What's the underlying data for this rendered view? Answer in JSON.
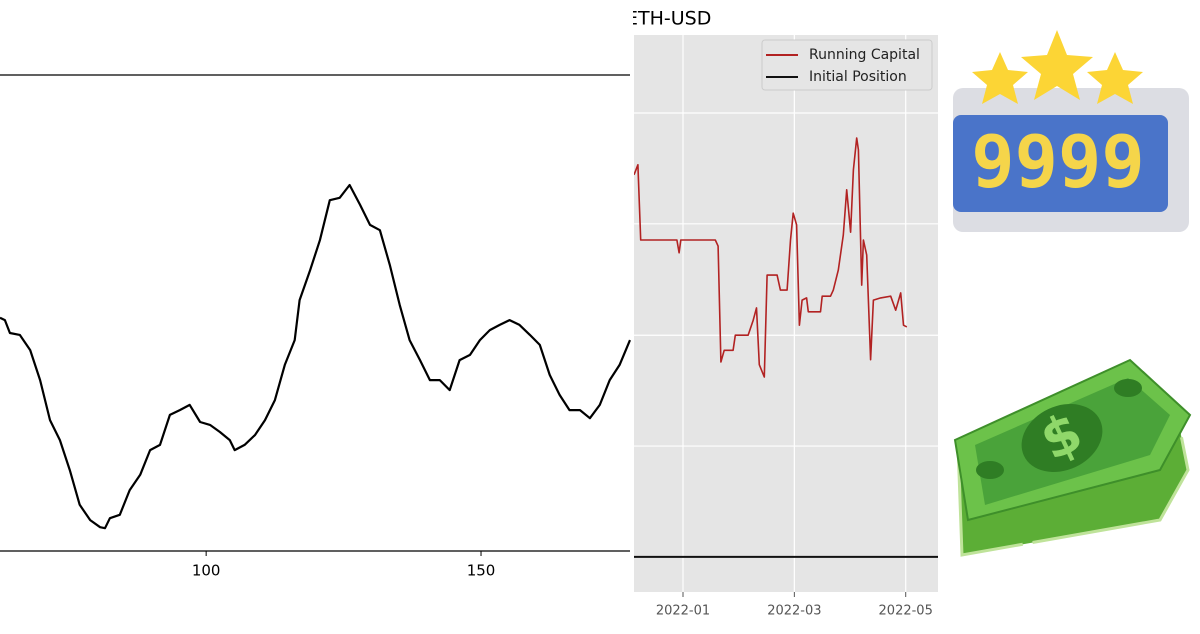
{
  "chart_data": [
    {
      "type": "line",
      "x": [
        62.5,
        63.4,
        64.3,
        66.1,
        68.0,
        69.8,
        71.6,
        73.4,
        75.2,
        77.0,
        78.9,
        80.7,
        81.6,
        82.5,
        84.3,
        86.1,
        88.0,
        89.8,
        91.6,
        93.4,
        95.2,
        97.0,
        98.9,
        100.7,
        102.5,
        104.3,
        105.2,
        107.0,
        108.9,
        110.7,
        112.5,
        114.3,
        116.1,
        117.0,
        118.9,
        120.7,
        122.5,
        124.3,
        126.1,
        128.0,
        129.8,
        131.6,
        133.4,
        135.2,
        137.0,
        138.9,
        140.7,
        142.5,
        144.3,
        146.1,
        148.0,
        149.8,
        151.6,
        153.4,
        155.2,
        157.0,
        158.9,
        160.7,
        162.5,
        164.3,
        166.1,
        168.0,
        169.8,
        171.6,
        173.4,
        175.2,
        177.1
      ],
      "series": [
        {
          "color": "#000000",
          "values": [
            49.0,
            48.5,
            45.8,
            45.4,
            42.2,
            35.9,
            27.5,
            23.3,
            17.0,
            9.7,
            6.5,
            5.0,
            4.8,
            6.9,
            7.6,
            12.8,
            16.0,
            21.2,
            22.3,
            28.6,
            29.6,
            30.7,
            27.1,
            26.5,
            25.0,
            23.3,
            21.2,
            22.3,
            24.4,
            27.5,
            31.7,
            39.1,
            44.3,
            52.7,
            59.0,
            65.3,
            73.7,
            74.2,
            76.9,
            72.7,
            68.5,
            67.4,
            60.1,
            51.7,
            44.3,
            40.1,
            35.9,
            35.9,
            33.8,
            40.1,
            41.2,
            44.3,
            46.4,
            47.5,
            48.5,
            47.5,
            45.4,
            43.3,
            37.0,
            32.8,
            29.6,
            29.6,
            27.9,
            30.7,
            35.9,
            39.1,
            44.3
          ]
        }
      ],
      "xlim": [
        62.5,
        177.1
      ],
      "xticks": [
        100,
        150
      ],
      "ylim": [
        0,
        100
      ],
      "grid": false
    },
    {
      "type": "line",
      "title": "ETH-USD",
      "x": [
        0.12,
        0.19,
        0.24,
        0.89,
        0.93,
        0.96,
        1.58,
        1.63,
        1.68,
        1.74,
        1.9,
        1.94,
        2.17,
        2.26,
        2.32,
        2.37,
        2.46,
        2.51,
        2.69,
        2.75,
        2.87,
        2.93,
        2.98,
        3.04,
        3.09,
        3.14,
        3.22,
        3.25,
        3.47,
        3.5,
        3.65,
        3.7,
        3.79,
        3.88,
        3.94,
        4.01,
        4.06,
        4.12,
        4.15,
        4.21,
        4.24,
        4.3,
        4.37,
        4.42,
        4.55,
        4.73,
        4.82,
        4.91,
        4.96,
        5.02
      ],
      "series": [
        {
          "name": "Running Capital",
          "color": "#b22222",
          "values": [
            74.9,
            76.7,
            63.2,
            63.2,
            60.9,
            63.2,
            63.2,
            62.1,
            41.3,
            43.4,
            43.4,
            46.1,
            46.1,
            48.8,
            51.0,
            40.8,
            38.6,
            56.9,
            56.9,
            54.2,
            54.2,
            63.2,
            68.0,
            65.9,
            47.9,
            52.4,
            52.8,
            50.3,
            50.3,
            53.1,
            53.1,
            54.2,
            57.8,
            64.1,
            72.2,
            64.6,
            75.8,
            81.5,
            79.4,
            55.1,
            63.2,
            60.5,
            41.7,
            52.4,
            52.8,
            53.1,
            50.6,
            53.7,
            47.9,
            47.6
          ]
        },
        {
          "name": "Initial Position",
          "color": "#111111",
          "hline": 6.3
        }
      ],
      "xlim": [
        0.12,
        5.58
      ],
      "xticks": [
        {
          "value": 1,
          "label": "2022-01"
        },
        {
          "value": 3,
          "label": "2022-03"
        },
        {
          "value": 5,
          "label": "2022-05"
        }
      ],
      "ylim": [
        0,
        100
      ],
      "yticks": [
        26.2,
        46.1,
        66.1,
        86.0
      ],
      "grid": true,
      "legend": "upper right"
    }
  ],
  "icons": {
    "badge_text": "9999"
  }
}
